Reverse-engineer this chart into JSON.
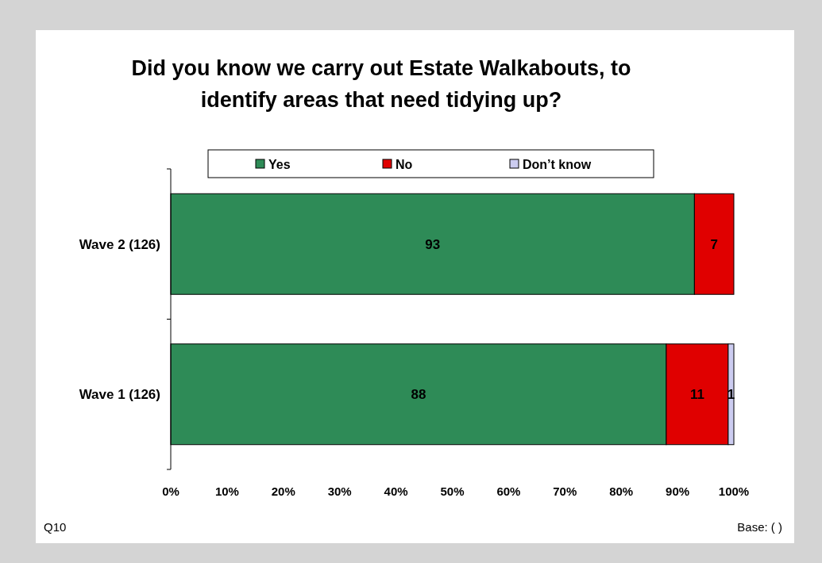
{
  "chart_data": {
    "type": "bar",
    "title": "Did you know we carry out Estate Walkabouts, to identify areas that need tidying up?",
    "orientation": "horizontal",
    "stacked": true,
    "categories": [
      "Wave 2 (126)",
      "Wave 1 (126)"
    ],
    "series": [
      {
        "name": "Yes",
        "color": "#2e8b57",
        "values": [
          93,
          88
        ],
        "value_labels": [
          "93",
          "88"
        ]
      },
      {
        "name": "No",
        "color": "#e00000",
        "values": [
          7,
          11
        ],
        "value_labels": [
          "7",
          "11"
        ]
      },
      {
        "name": "Don’t know",
        "color": "#ccccf0",
        "values": [
          0,
          1
        ],
        "value_labels": [
          null,
          "1"
        ]
      }
    ],
    "xlim": [
      0,
      100
    ],
    "xticks": [
      {
        "value": 0,
        "label": "0%"
      },
      {
        "value": 10,
        "label": "10%"
      },
      {
        "value": 20,
        "label": "20%"
      },
      {
        "value": 30,
        "label": "30%"
      },
      {
        "value": 40,
        "label": "40%"
      },
      {
        "value": 50,
        "label": "50%"
      },
      {
        "value": 60,
        "label": "60%"
      },
      {
        "value": 70,
        "label": "70%"
      },
      {
        "value": 80,
        "label": "80%"
      },
      {
        "value": 90,
        "label": "90%"
      },
      {
        "value": 100,
        "label": "100%"
      }
    ],
    "legend": "top",
    "grid": false,
    "annotations": [
      "Q10",
      "Base: ( )"
    ]
  }
}
